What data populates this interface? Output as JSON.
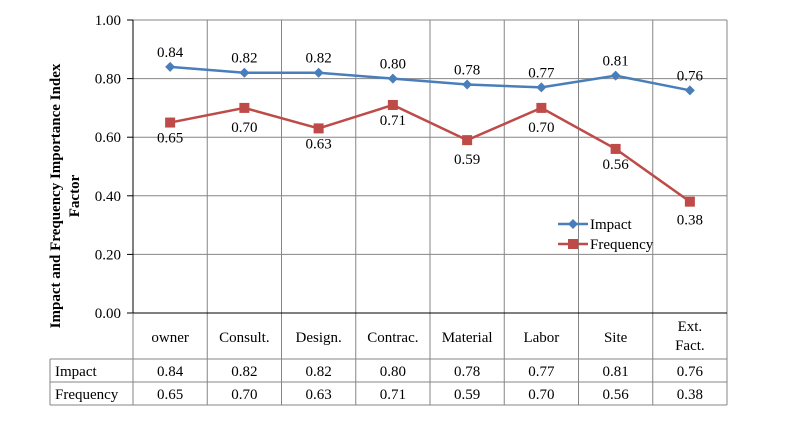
{
  "chart_data": {
    "type": "line",
    "categories": [
      "owner",
      "Consult.",
      "Design.",
      "Contrac.",
      "Material",
      "Labor",
      "Site",
      "Ext. Fact."
    ],
    "series": [
      {
        "name": "Impact",
        "values": [
          0.84,
          0.82,
          0.82,
          0.8,
          0.78,
          0.77,
          0.81,
          0.76
        ],
        "color": "#4a7ebb",
        "marker": "diamond"
      },
      {
        "name": "Frequency",
        "values": [
          0.65,
          0.7,
          0.63,
          0.71,
          0.59,
          0.7,
          0.56,
          0.38
        ],
        "color": "#be4b48",
        "marker": "square"
      }
    ],
    "value_labels": {
      "Impact": [
        "0.84",
        "0.82",
        "0.82",
        "0.80",
        "0.78",
        "0.77",
        "0.81",
        "0.76"
      ],
      "Frequency": [
        "0.65",
        "0.70",
        "0.63",
        "0.71",
        "0.59",
        "0.70",
        "0.56",
        "0.38"
      ]
    },
    "ylabel": "Impact and Frequency Importance Index Factor",
    "ylim": [
      0,
      1
    ],
    "yticks": [
      "0.00",
      "0.20",
      "0.40",
      "0.60",
      "0.80",
      "1.00"
    ],
    "grid": true,
    "legend": "right",
    "data_table": true
  }
}
